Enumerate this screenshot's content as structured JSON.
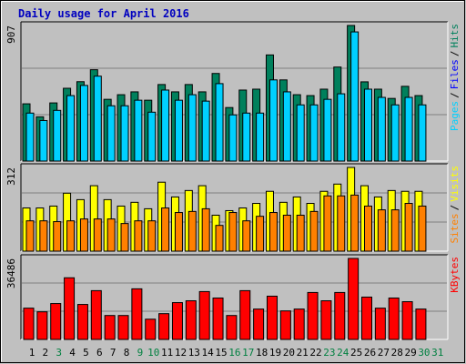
{
  "chart_data": {
    "type": "bar",
    "title": "Daily usage for April 2016",
    "categories": [
      "1",
      "2",
      "3",
      "4",
      "5",
      "6",
      "7",
      "8",
      "9",
      "10",
      "11",
      "12",
      "13",
      "14",
      "15",
      "16",
      "17",
      "18",
      "19",
      "20",
      "21",
      "22",
      "23",
      "24",
      "25",
      "26",
      "27",
      "28",
      "29",
      "30",
      "31"
    ],
    "category_colors": [
      "#000000",
      "#000000",
      "#008040",
      "#000000",
      "#000000",
      "#000000",
      "#000000",
      "#000000",
      "#008040",
      "#008040",
      "#000000",
      "#000000",
      "#000000",
      "#000000",
      "#000000",
      "#008040",
      "#008040",
      "#000000",
      "#000000",
      "#000000",
      "#000000",
      "#000000",
      "#008040",
      "#008040",
      "#000000",
      "#000000",
      "#000000",
      "#000000",
      "#000000",
      "#008040",
      "#008040"
    ],
    "legend_separator": "/",
    "panels": [
      {
        "ylim": [
          0,
          907
        ],
        "yticks": [
          907
        ],
        "series": [
          {
            "name": "Hits",
            "color": "#00805c",
            "values": [
              383,
              296,
              389,
              487,
              531,
              611,
              413,
              444,
              463,
              407,
              512,
              463,
              512,
              463,
              586,
              358,
              475,
              481,
              710,
              543,
              444,
              438,
              481,
              629,
              907,
              530,
              481,
              419,
              500,
              438,
              null
            ]
          },
          {
            "name": "Files",
            "color": "#0000ff",
            "values": [
              null,
              null,
              null,
              null,
              null,
              null,
              null,
              null,
              null,
              null,
              null,
              null,
              null,
              null,
              null,
              null,
              null,
              null,
              null,
              null,
              null,
              null,
              null,
              null,
              null,
              null,
              null,
              null,
              null,
              null,
              null
            ]
          },
          {
            "name": "Pages",
            "color": "#00d0ff",
            "values": [
              321,
              271,
              339,
              438,
              506,
              568,
              370,
              370,
              407,
              327,
              475,
              407,
              444,
              401,
              518,
              309,
              321,
              321,
              543,
              463,
              376,
              376,
              413,
              450,
              864,
              481,
              426,
              376,
              426,
              376,
              null
            ]
          }
        ]
      },
      {
        "ylim": [
          0,
          312
        ],
        "yticks": [
          312
        ],
        "series": [
          {
            "name": "Visits",
            "color": "#ffff00",
            "values": [
              161,
              161,
              168,
              216,
              192,
              244,
              192,
              168,
              182,
              158,
              257,
              202,
              226,
              244,
              134,
              151,
              161,
              178,
              223,
              182,
              202,
              178,
              223,
              250,
              312,
              244,
              202,
              226,
              223,
              223,
              null
            ]
          },
          {
            "name": "Sites",
            "color": "#ff8000",
            "values": [
              113,
              113,
              110,
              113,
              120,
              120,
              120,
              103,
              113,
              113,
              161,
              144,
              148,
              158,
              96,
              144,
              113,
              130,
              144,
              134,
              134,
              148,
              206,
              206,
              209,
              168,
              154,
              154,
              178,
              168,
              null
            ]
          }
        ]
      },
      {
        "ylim": [
          0,
          36486
        ],
        "yticks": [
          36486
        ],
        "series": [
          {
            "name": "KBytes",
            "color": "#ff0000",
            "values": [
              14097,
              12438,
              16169,
              27778,
              15755,
              21974,
              10780,
              10780,
              22803,
              9121,
              11609,
              16584,
              17413,
              21559,
              18657,
              10780,
              21974,
              13682,
              19486,
              12853,
              13682,
              21145,
              17413,
              21145,
              36486,
              19072,
              14097,
              18657,
              16999,
              13682,
              null
            ]
          }
        ]
      }
    ]
  }
}
